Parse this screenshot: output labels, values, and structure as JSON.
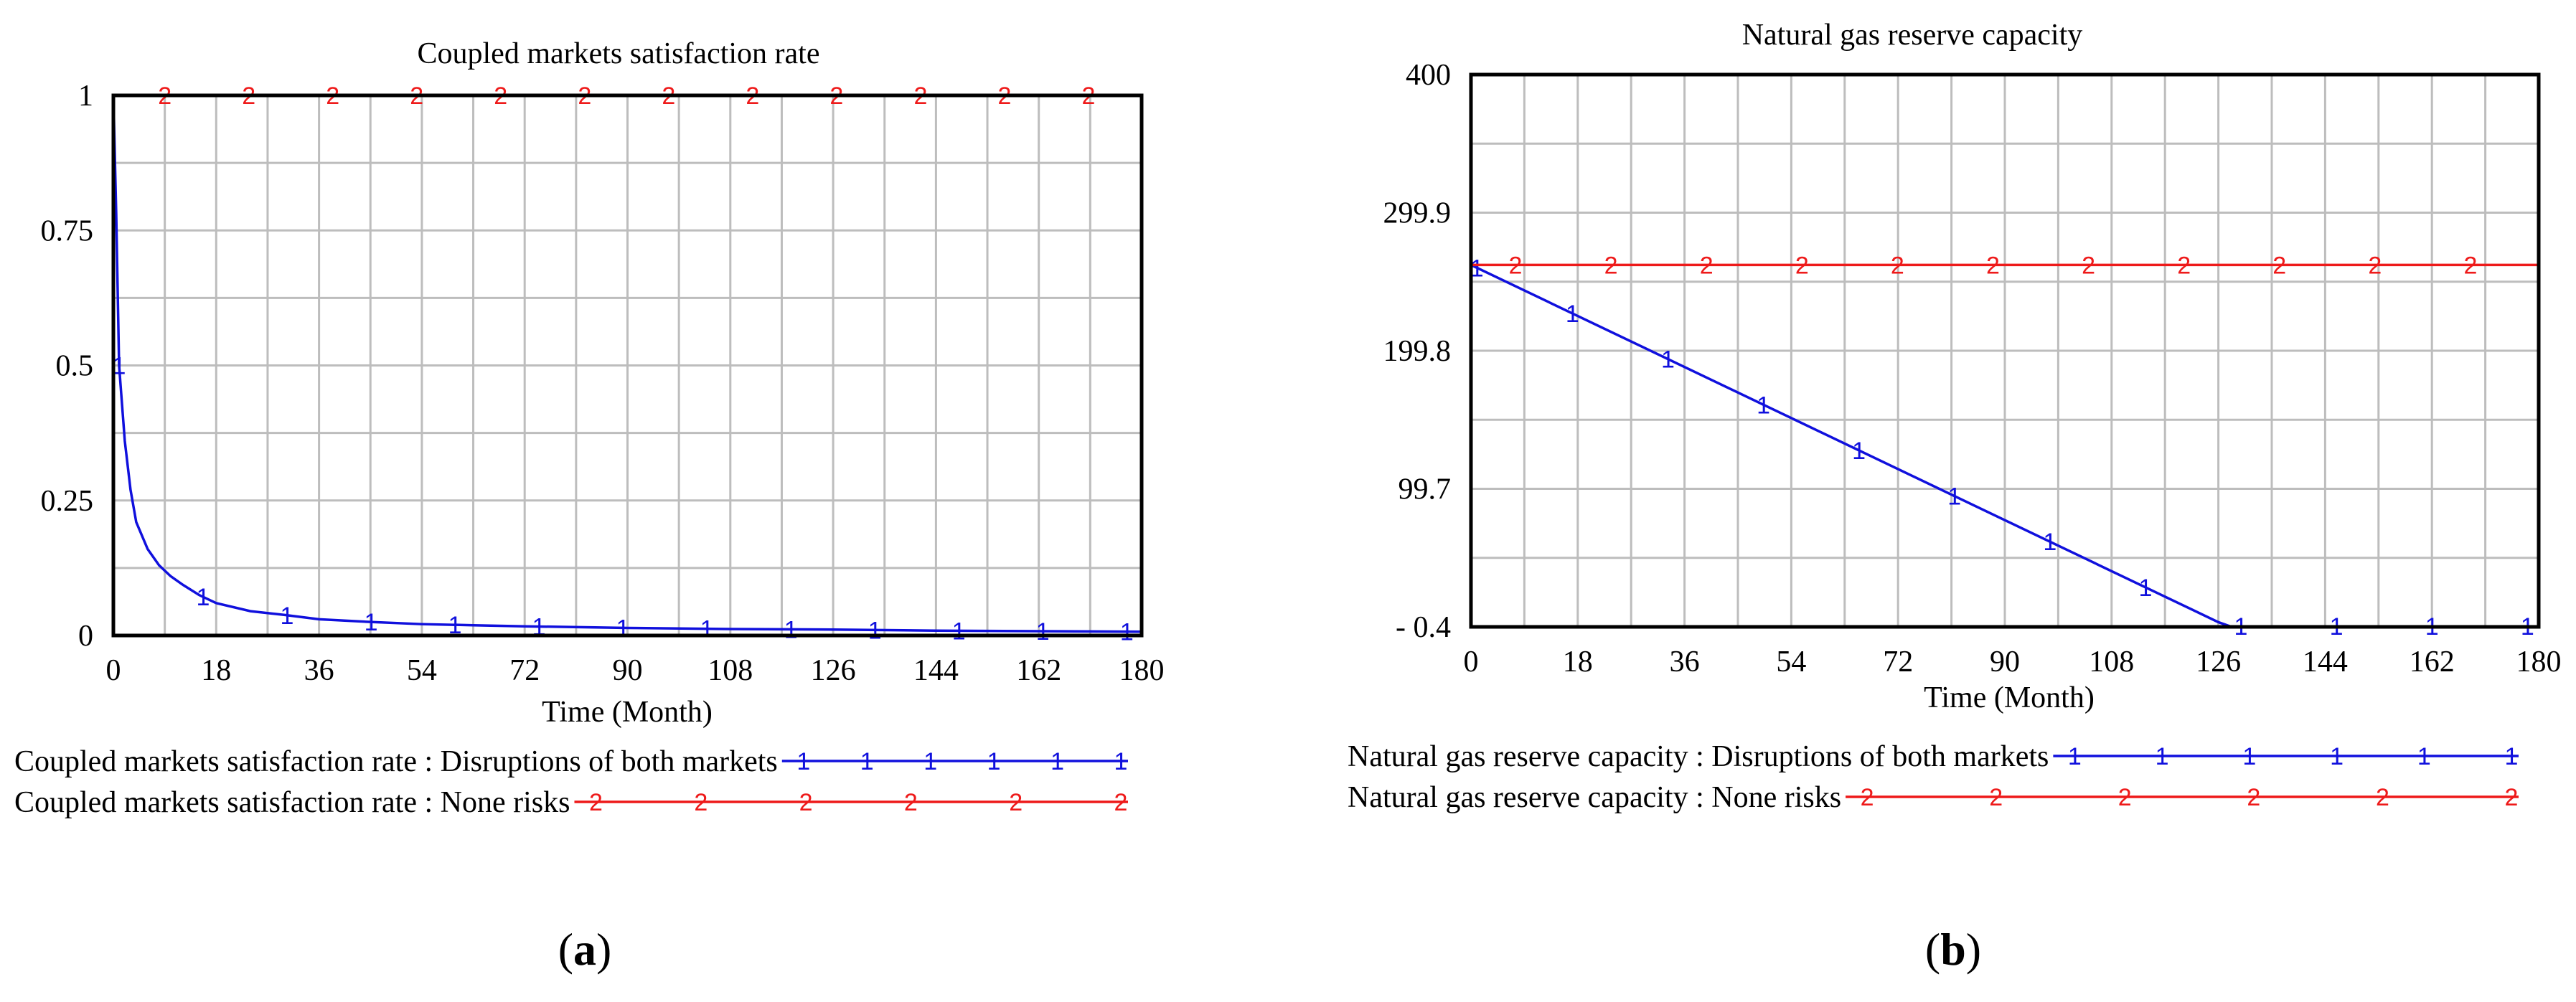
{
  "colors": {
    "series1": "#1010dd",
    "series2": "#ee1a1a",
    "grid": "#bdbdbd",
    "frame": "#000000"
  },
  "chart_data": [
    {
      "type": "line",
      "panel_label": "a",
      "title": "Coupled markets satisfaction rate",
      "xlabel": "Time (Month)",
      "ylabel": "",
      "xlim": [
        0,
        180
      ],
      "ylim": [
        0,
        1
      ],
      "x_ticks": [
        0,
        18,
        36,
        54,
        72,
        90,
        108,
        126,
        144,
        162,
        180
      ],
      "y_ticks": [
        0,
        0.25,
        0.5,
        0.75,
        1
      ],
      "y_tick_labels": [
        "0",
        "0.25",
        "0.5",
        "0.75",
        "1"
      ],
      "series": [
        {
          "name": "Coupled markets satisfaction rate : Disruptions of both markets",
          "marker": "1",
          "x": [
            0,
            0.5,
            1,
            2,
            3,
            4,
            6,
            8,
            10,
            12,
            15,
            18,
            24,
            30,
            36,
            45,
            54,
            63,
            72,
            90,
            108,
            126,
            144,
            162,
            180
          ],
          "y": [
            1,
            0.78,
            0.5,
            0.36,
            0.27,
            0.21,
            0.16,
            0.13,
            0.11,
            0.095,
            0.075,
            0.06,
            0.045,
            0.038,
            0.03,
            0.025,
            0.021,
            0.019,
            0.017,
            0.014,
            0.012,
            0.011,
            0.009,
            0.008,
            0.007
          ]
        },
        {
          "name": "Coupled markets satisfaction rate : None risks",
          "marker": "2",
          "x": [
            0,
            180
          ],
          "y": [
            1,
            1
          ]
        }
      ]
    },
    {
      "type": "line",
      "panel_label": "b",
      "title": "Natural gas reserve capacity",
      "xlabel": "Time (Month)",
      "ylabel": "",
      "xlim": [
        0,
        180
      ],
      "ylim": [
        -0.4,
        400
      ],
      "x_ticks": [
        0,
        18,
        36,
        54,
        72,
        90,
        108,
        126,
        144,
        162,
        180
      ],
      "y_ticks": [
        -0.4,
        99.7,
        199.8,
        299.9,
        400
      ],
      "y_tick_labels": [
        "- 0.4",
        "99.7",
        "199.8",
        "299.9",
        "400"
      ],
      "series": [
        {
          "name": "Natural gas reserve capacity : Disruptions of both markets",
          "marker": "1",
          "x": [
            0,
            126,
            128,
            180
          ],
          "y": [
            262,
            3,
            0,
            0
          ]
        },
        {
          "name": "Natural gas reserve capacity : None risks",
          "marker": "2",
          "x": [
            0,
            180
          ],
          "y": [
            262,
            262
          ]
        }
      ]
    }
  ]
}
